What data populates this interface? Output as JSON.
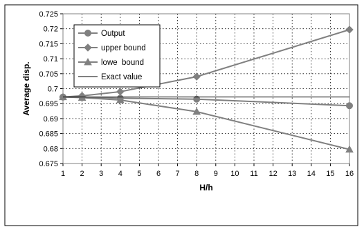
{
  "chart_data": {
    "type": "line",
    "title": "",
    "xlabel": "H/h",
    "ylabel": "Average disp.",
    "x_ticks": [
      1,
      2,
      3,
      4,
      5,
      6,
      7,
      8,
      9,
      10,
      11,
      12,
      13,
      14,
      15,
      16
    ],
    "y_ticks": [
      "0.675",
      "0.68",
      "0.685",
      "0.69",
      "0.695",
      "0.7",
      "0.705",
      "0.71",
      "0.715",
      "0.72",
      "0.725"
    ],
    "xlim": [
      1,
      16
    ],
    "ylim": [
      0.675,
      0.725
    ],
    "grid": true,
    "legend_position": "top-left",
    "series": [
      {
        "name": "Output",
        "marker": "circle",
        "x": [
          1,
          2,
          4,
          8,
          16
        ],
        "y": [
          0.6972,
          0.6972,
          0.6968,
          0.6965,
          0.6943
        ]
      },
      {
        "name": "upper bound",
        "marker": "diamond",
        "x": [
          1,
          2,
          4,
          8,
          16
        ],
        "y": [
          0.6972,
          0.6976,
          0.699,
          0.704,
          0.7197
        ]
      },
      {
        "name": "lowe  bound",
        "marker": "triangle",
        "x": [
          1,
          2,
          4,
          8,
          16
        ],
        "y": [
          0.6972,
          0.697,
          0.6962,
          0.6923,
          0.6797
        ]
      },
      {
        "name": "Exact value",
        "marker": "none",
        "x": [
          1,
          16
        ],
        "y": [
          0.6972,
          0.6972
        ]
      }
    ],
    "colors": {
      "line": "#808080",
      "marker": "#808080",
      "axis": "#000000",
      "grid": "#000000"
    }
  }
}
